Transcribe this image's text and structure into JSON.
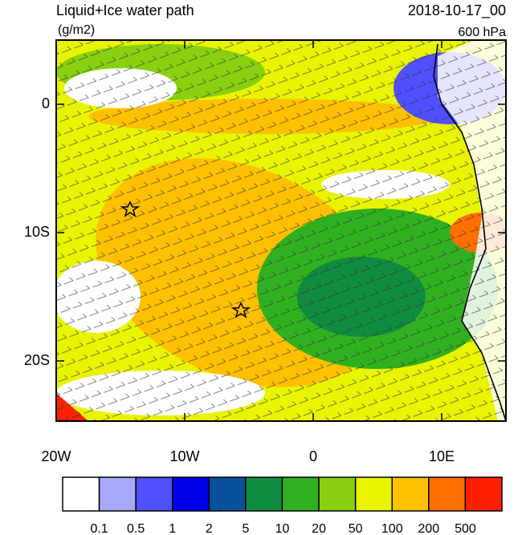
{
  "header": {
    "title": "Liquid+Ice water path",
    "units": "(g/m2)",
    "date": "2018-10-17_00",
    "level": "600 hPa"
  },
  "map": {
    "lat_labels": [
      "0",
      "10S",
      "20S"
    ],
    "lon_labels": [
      "20W",
      "10W",
      "0",
      "10E"
    ]
  },
  "colorbar": {
    "colors": [
      "#ffffff",
      "#a8a8f8",
      "#5050ff",
      "#0000e8",
      "#08509c",
      "#108c40",
      "#30b020",
      "#88d010",
      "#e8f400",
      "#ffc000",
      "#ff7000",
      "#ff2000"
    ],
    "labels": [
      "0.1",
      "0.5",
      "1",
      "2",
      "5",
      "10",
      "20",
      "50",
      "100",
      "200",
      "500"
    ]
  }
}
